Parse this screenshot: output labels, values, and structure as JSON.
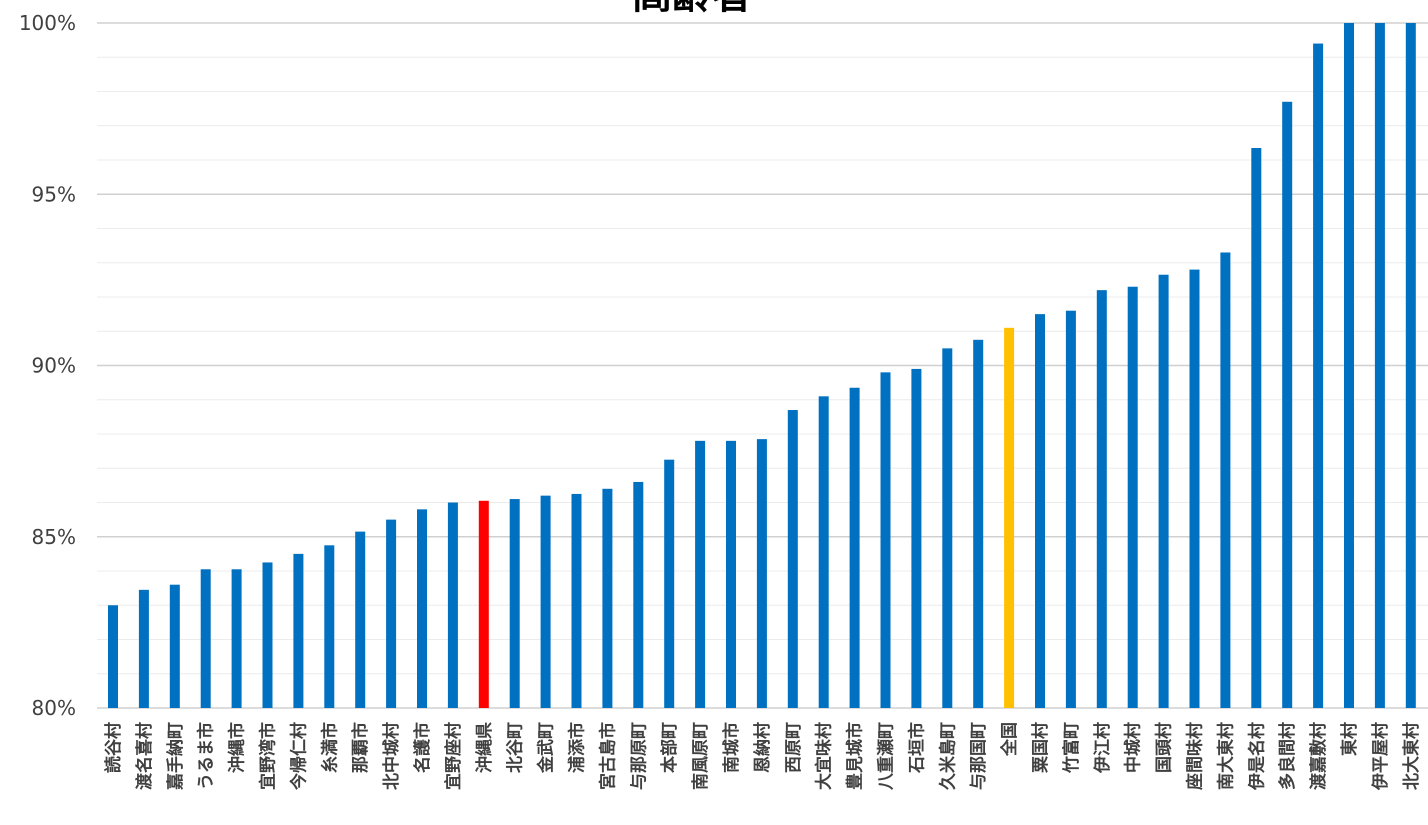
{
  "chart_data": {
    "type": "bar",
    "title": "高齢者",
    "xlabel": "",
    "ylabel": "",
    "ylim": [
      80,
      100
    ],
    "yticks": [
      "80%",
      "85%",
      "90%",
      "95%",
      "100%"
    ],
    "grid": true,
    "categories": [
      "読谷村",
      "渡名喜村",
      "嘉手納町",
      "うるま市",
      "沖縄市",
      "宜野湾市",
      "今帰仁村",
      "糸満市",
      "那覇市",
      "北中城村",
      "名護市",
      "宜野座村",
      "沖縄県",
      "北谷町",
      "金武町",
      "浦添市",
      "宮古島市",
      "与那原町",
      "本部町",
      "南風原町",
      "南城市",
      "恩納村",
      "西原町",
      "大宜味村",
      "豊見城市",
      "八重瀬町",
      "石垣市",
      "久米島町",
      "与那国町",
      "全国",
      "粟国村",
      "竹富町",
      "伊江村",
      "中城村",
      "国頭村",
      "座間味村",
      "南大東村",
      "伊是名村",
      "多良間村",
      "渡嘉敷村",
      "東村",
      "伊平屋村",
      "北大東村"
    ],
    "values": [
      83.0,
      83.45,
      83.6,
      84.05,
      84.05,
      84.25,
      84.5,
      84.75,
      85.15,
      85.5,
      85.8,
      86.0,
      86.05,
      86.1,
      86.2,
      86.25,
      86.4,
      86.6,
      87.25,
      87.8,
      87.8,
      87.85,
      88.7,
      89.1,
      89.35,
      89.8,
      89.9,
      90.5,
      90.75,
      91.1,
      91.5,
      91.6,
      92.2,
      92.3,
      92.65,
      92.8,
      93.3,
      96.35,
      97.7,
      99.4,
      100,
      100,
      100
    ],
    "highlight": {
      "沖縄県": "#ff0000",
      "全国": "#ffc000"
    },
    "colors": {
      "default": "#0070c0",
      "prefecture": "#ff0000",
      "national": "#ffc000",
      "grid": "#d9d9d9",
      "text": "#404040"
    }
  }
}
